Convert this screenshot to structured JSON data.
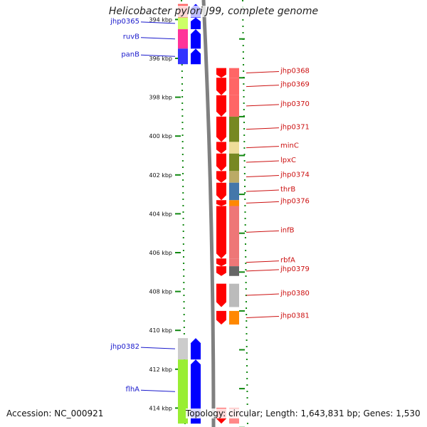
{
  "title": "Helicobacter pylori J99, complete genome",
  "footer": {
    "accession": "Accession: NC_000921",
    "info": "Topology: circular; Length: 1,643,831 bp; Genes: 1,530"
  },
  "colors": {
    "forward_strand": "#0000ff",
    "reverse_strand": "#ff0000",
    "backbone": "#808080",
    "ruler": "#118811",
    "left_label": "#1a1acc",
    "right_label": "#cc1111"
  },
  "ruler_ticks": [
    {
      "kbp": 394,
      "label": "394 kbp"
    },
    {
      "kbp": 396,
      "label": "396 kbp"
    },
    {
      "kbp": 398,
      "label": "398 kbp"
    },
    {
      "kbp": 400,
      "label": "400 kbp"
    },
    {
      "kbp": 402,
      "label": "402 kbp"
    },
    {
      "kbp": 404,
      "label": "404 kbp"
    },
    {
      "kbp": 406,
      "label": "406 kbp"
    },
    {
      "kbp": 408,
      "label": "408 kbp"
    },
    {
      "kbp": 410,
      "label": "410 kbp"
    },
    {
      "kbp": 412,
      "label": "412 kbp"
    },
    {
      "kbp": 414,
      "label": "414 kbp"
    }
  ],
  "forward_genes": [
    {
      "name": "",
      "start": 393.2,
      "end": 393.9,
      "cog": "#ff6666"
    },
    {
      "name": "jhp0365",
      "start": 393.9,
      "end": 394.5,
      "cog": "#ccff66"
    },
    {
      "name": "ruvB",
      "start": 394.5,
      "end": 395.5,
      "cog": "#ff3399"
    },
    {
      "name": "panB",
      "start": 395.5,
      "end": 396.3,
      "cog": "#3333ff"
    },
    {
      "name": "jhp0382",
      "start": 410.4,
      "end": 411.5,
      "cog": "#cccccc"
    },
    {
      "name": "flhA",
      "start": 411.5,
      "end": 414.8,
      "cog": "#99ee33"
    }
  ],
  "reverse_genes": [
    {
      "name": "jhp0368",
      "start": 396.5,
      "end": 397.0,
      "cog": "#ff6666"
    },
    {
      "name": "jhp0369",
      "start": 397.0,
      "end": 397.9,
      "cog": "#ff6666"
    },
    {
      "name": "jhp0370",
      "start": 397.9,
      "end": 399.0,
      "cog": "#ff6666"
    },
    {
      "name": "jhp0371",
      "start": 399.0,
      "end": 400.3,
      "cog": "#778822"
    },
    {
      "name": "minC",
      "start": 400.3,
      "end": 400.9,
      "cog": "#eedd99"
    },
    {
      "name": "lpxC",
      "start": 400.9,
      "end": 401.8,
      "cog": "#778822"
    },
    {
      "name": "jhp0374",
      "start": 401.8,
      "end": 402.4,
      "cog": "#bbaa66"
    },
    {
      "name": "thrB",
      "start": 402.4,
      "end": 403.3,
      "cog": "#4477aa"
    },
    {
      "name": "jhp0376",
      "start": 403.3,
      "end": 403.6,
      "cog": "#ff8800"
    },
    {
      "name": "infB",
      "start": 403.6,
      "end": 406.3,
      "cog": "#ee7777"
    },
    {
      "name": "rbfA",
      "start": 406.3,
      "end": 406.7,
      "cog": "#ee7777"
    },
    {
      "name": "jhp0379",
      "start": 406.7,
      "end": 407.2,
      "cog": "#666666"
    },
    {
      "name": "jhp0380",
      "start": 407.6,
      "end": 408.8,
      "cog": "#bbbbbb"
    },
    {
      "name": "jhp0381",
      "start": 409.0,
      "end": 409.7,
      "cog": "#ff8800"
    },
    {
      "name": "",
      "start": 414.0,
      "end": 414.8,
      "cog": "#ff8888"
    }
  ]
}
